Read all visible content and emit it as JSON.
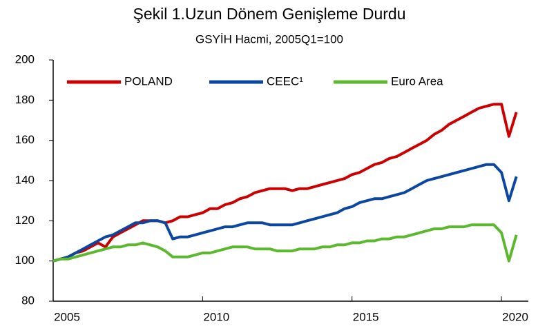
{
  "chart_data": {
    "type": "line",
    "title": "Şekil 1.Uzun Dönem Genişleme Durdu",
    "subtitle": "GSYİH Hacmi, 2005Q1=100",
    "x": [
      2005,
      2005.25,
      2005.5,
      2005.75,
      2006,
      2006.25,
      2006.5,
      2006.75,
      2007,
      2007.25,
      2007.5,
      2007.75,
      2008,
      2008.25,
      2008.5,
      2008.75,
      2009,
      2009.25,
      2009.5,
      2009.75,
      2010,
      2010.25,
      2010.5,
      2010.75,
      2011,
      2011.25,
      2011.5,
      2011.75,
      2012,
      2012.25,
      2012.5,
      2012.75,
      2013,
      2013.25,
      2013.5,
      2013.75,
      2014,
      2014.25,
      2014.5,
      2014.75,
      2015,
      2015.25,
      2015.5,
      2015.75,
      2016,
      2016.25,
      2016.5,
      2016.75,
      2017,
      2017.25,
      2017.5,
      2017.75,
      2018,
      2018.25,
      2018.5,
      2018.75,
      2019,
      2019.25,
      2019.5,
      2019.75,
      2020,
      2020.25,
      2020.5
    ],
    "series": [
      {
        "name": "POLAND",
        "color": "#cc0000",
        "values": [
          100,
          101,
          102,
          104,
          105,
          107,
          109,
          107,
          112,
          114,
          116,
          118,
          120,
          120,
          120,
          119,
          120,
          122,
          122,
          123,
          124,
          126,
          126,
          128,
          129,
          131,
          132,
          134,
          135,
          136,
          136,
          136,
          135,
          136,
          136,
          137,
          138,
          139,
          140,
          141,
          143,
          144,
          146,
          148,
          149,
          151,
          152,
          154,
          156,
          158,
          160,
          163,
          165,
          168,
          170,
          172,
          174,
          176,
          177,
          178,
          178,
          162,
          174
        ]
      },
      {
        "name": "CEEC¹",
        "color": "#0b47a1",
        "values": [
          100,
          101,
          102,
          104,
          106,
          108,
          110,
          112,
          113,
          115,
          117,
          119,
          119,
          120,
          120,
          119,
          111,
          112,
          112,
          113,
          114,
          115,
          116,
          117,
          117,
          118,
          119,
          119,
          119,
          118,
          118,
          118,
          118,
          119,
          120,
          121,
          122,
          123,
          124,
          126,
          127,
          129,
          130,
          131,
          131,
          132,
          133,
          134,
          136,
          138,
          140,
          141,
          142,
          143,
          144,
          145,
          146,
          147,
          148,
          148,
          144,
          130,
          142
        ]
      },
      {
        "name": "Euro Area",
        "color": "#5cb82e",
        "values": [
          100,
          101,
          101,
          102,
          103,
          104,
          105,
          106,
          107,
          107,
          108,
          108,
          109,
          108,
          107,
          105,
          102,
          102,
          102,
          103,
          104,
          104,
          105,
          106,
          107,
          107,
          107,
          106,
          106,
          106,
          105,
          105,
          105,
          106,
          106,
          106,
          107,
          107,
          108,
          108,
          109,
          109,
          110,
          110,
          111,
          111,
          112,
          112,
          113,
          114,
          115,
          116,
          116,
          117,
          117,
          117,
          118,
          118,
          118,
          118,
          114,
          100,
          113
        ]
      }
    ],
    "xlim": [
      2005,
      2020.9
    ],
    "xticks": [
      2005,
      2010,
      2015,
      2020
    ],
    "ylim": [
      80,
      200
    ],
    "yticks": [
      80,
      100,
      120,
      140,
      160,
      180,
      200
    ],
    "grid": false,
    "legend": "top"
  }
}
